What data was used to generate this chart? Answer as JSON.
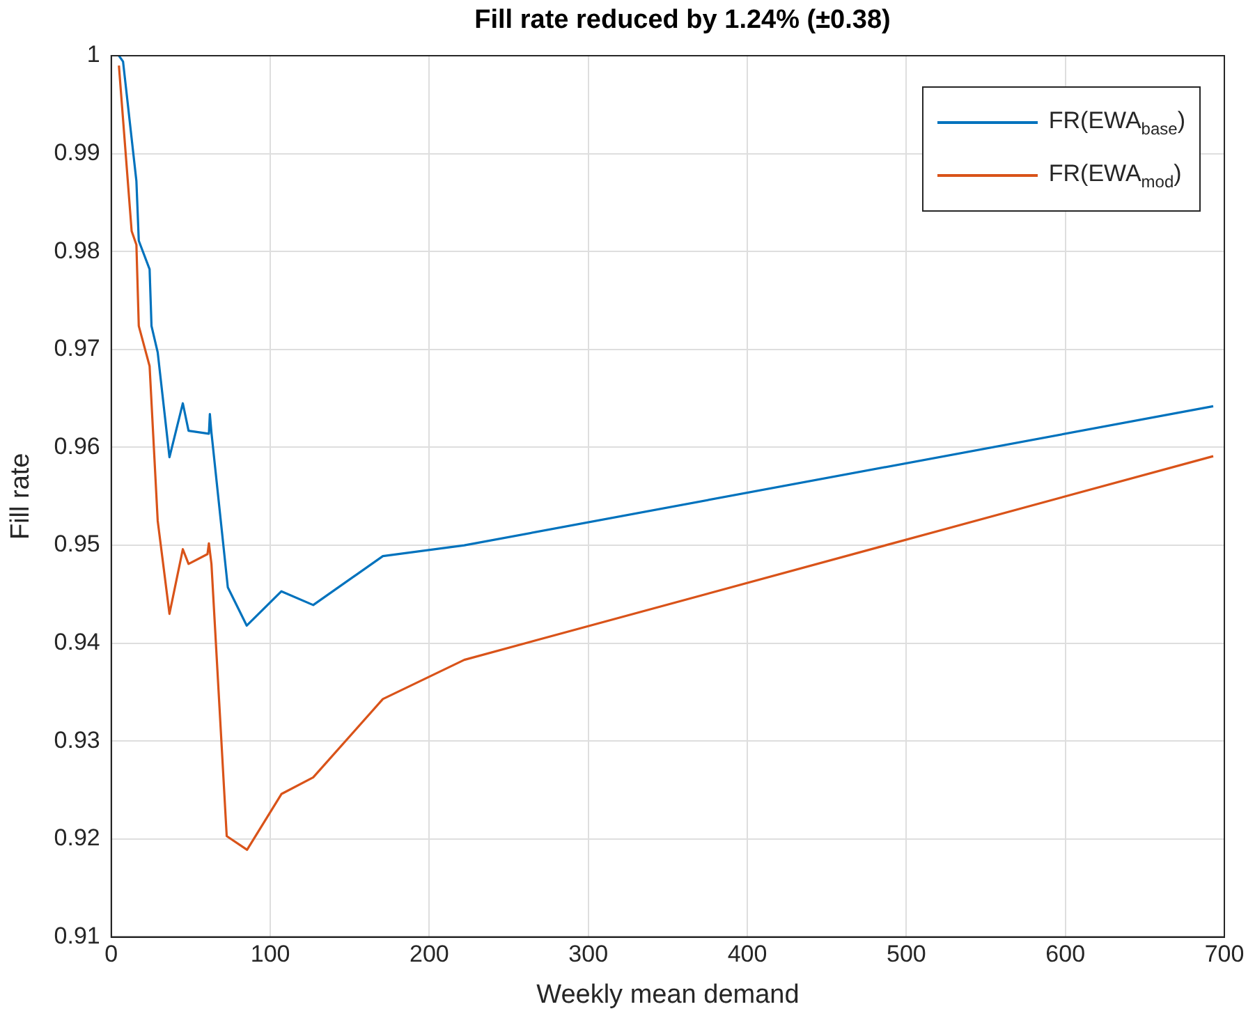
{
  "chart_data": {
    "type": "line",
    "title": "Fill rate reduced by 1.24% (±0.38)",
    "xlabel": "Weekly mean demand",
    "ylabel": "Fill rate",
    "xlim": [
      0,
      700
    ],
    "xticks": [
      0,
      100,
      200,
      300,
      400,
      500,
      600,
      700
    ],
    "ylim": [
      0.91,
      1
    ],
    "yticks": [
      0.91,
      0.92,
      0.93,
      0.94,
      0.95,
      0.96,
      0.97,
      0.98,
      0.99,
      1
    ],
    "grid": true,
    "legend": "top right",
    "marker": "none",
    "line_style": "solid",
    "series": [
      {
        "name": "FR(EWA$_{base}$)",
        "color": "#0072bd",
        "x": [
          4.8,
          7.4,
          15.8,
          17.3,
          24.1,
          25.3,
          29.2,
          36.6,
          45,
          48.6,
          61.4,
          62,
          63,
          73.3,
          85.2,
          107,
          127,
          170.8,
          222,
          693
        ],
        "values": [
          1,
          0.9994,
          0.9872,
          0.9811,
          0.9782,
          0.9724,
          0.9697,
          0.959,
          0.9645,
          0.9617,
          0.9614,
          0.9634,
          0.9615,
          0.9457,
          0.9418,
          0.9453,
          0.9439,
          0.9489,
          0.95,
          0.9642
        ]
      },
      {
        "name": "FR(EWA$_{mod}$)",
        "color": "#d95319",
        "x": [
          4.8,
          12.8,
          15.8,
          17.3,
          24.1,
          29.2,
          36.6,
          45,
          48.6,
          60.5,
          61.4,
          63,
          72.6,
          85.4,
          107,
          127,
          170.8,
          222,
          693
        ],
        "values": [
          0.999,
          0.9821,
          0.9807,
          0.9724,
          0.9683,
          0.9525,
          0.943,
          0.9496,
          0.9481,
          0.9491,
          0.9502,
          0.9481,
          0.9203,
          0.9189,
          0.9246,
          0.9263,
          0.9343,
          0.9383,
          0.9591
        ]
      }
    ]
  }
}
